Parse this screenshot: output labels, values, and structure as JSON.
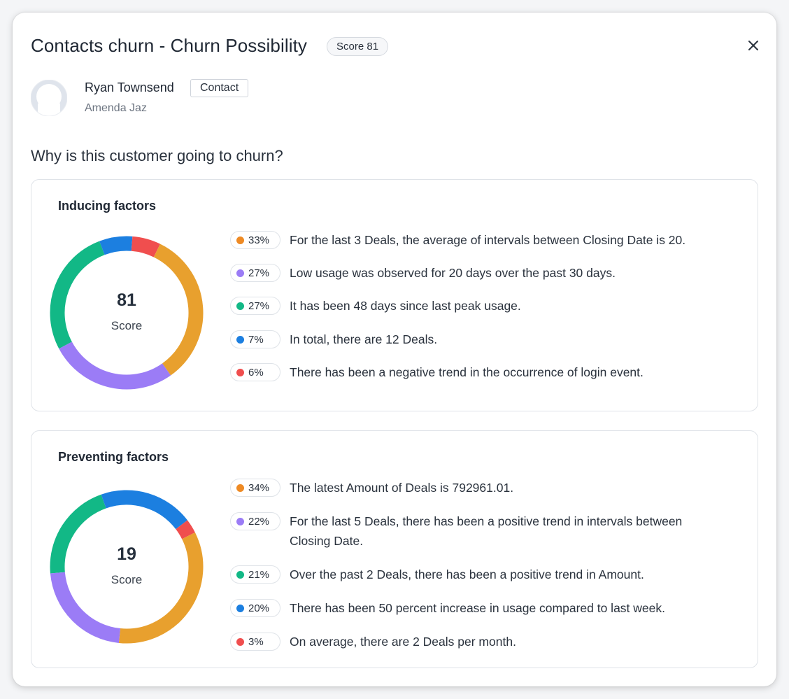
{
  "dialog": {
    "title": "Contacts churn - Churn Possibility",
    "score_chip": "Score 81",
    "close_icon": "close-icon"
  },
  "contact": {
    "name": "Ryan Townsend",
    "tag": "Contact",
    "owner": "Amenda Jaz",
    "avatar_icon": "user-avatar-icon"
  },
  "question": "Why is this customer going to churn?",
  "colors": {
    "orange": "#E8A02E",
    "purple": "#9B7CF6",
    "green": "#12B886",
    "blue": "#1C7FE0",
    "red": "#F04E4E",
    "dot_orange": "#EE8A24"
  },
  "inducing": {
    "title": "Inducing factors",
    "score_value": "81",
    "score_label": "Score",
    "factors": [
      {
        "pct": "33%",
        "color": "orange",
        "text": "For the last 3 Deals, the average of intervals between Closing Date is 20."
      },
      {
        "pct": "27%",
        "color": "purple",
        "text": "Low usage was observed for 20 days over the past 30 days."
      },
      {
        "pct": "27%",
        "color": "green",
        "text": "It has been 48 days since last peak usage."
      },
      {
        "pct": "7%",
        "color": "blue",
        "text": "In total, there are 12 Deals."
      },
      {
        "pct": "6%",
        "color": "red",
        "text": "There has been a negative trend in the occurrence of login event."
      }
    ]
  },
  "preventing": {
    "title": "Preventing factors",
    "score_value": "19",
    "score_label": "Score",
    "factors": [
      {
        "pct": "34%",
        "color": "orange",
        "text": "The latest Amount of Deals is 792961.01."
      },
      {
        "pct": "22%",
        "color": "purple",
        "text": "For the last 5 Deals, there has been a positive trend in intervals between Closing Date."
      },
      {
        "pct": "21%",
        "color": "green",
        "text": "Over the past 2 Deals, there has been a positive trend in Amount."
      },
      {
        "pct": "20%",
        "color": "blue",
        "text": "There has been 50 percent increase in usage compared to last week."
      },
      {
        "pct": "3%",
        "color": "red",
        "text": "On average, there are 2 Deals per month."
      }
    ]
  },
  "chart_data": [
    {
      "type": "pie",
      "title": "Inducing factors",
      "categories": [
        "For the last 3 Deals, the average of intervals between Closing Date is 20.",
        "Low usage was observed for 20 days over the past 30 days.",
        "It has been 48 days since last peak usage.",
        "In total, there are 12 Deals.",
        "There has been a negative trend in the occurrence of login event."
      ],
      "values": [
        33,
        27,
        27,
        7,
        6
      ],
      "center_label": "81 Score"
    },
    {
      "type": "pie",
      "title": "Preventing factors",
      "categories": [
        "The latest Amount of Deals is 792961.01.",
        "For the last 5 Deals, there has been a positive trend in intervals between Closing Date.",
        "Over the past 2 Deals, there has been a positive trend in Amount.",
        "There has been 50 percent increase in usage compared to last week.",
        "On average, there are 2 Deals per month."
      ],
      "values": [
        34,
        22,
        21,
        20,
        3
      ],
      "center_label": "19 Score"
    }
  ]
}
